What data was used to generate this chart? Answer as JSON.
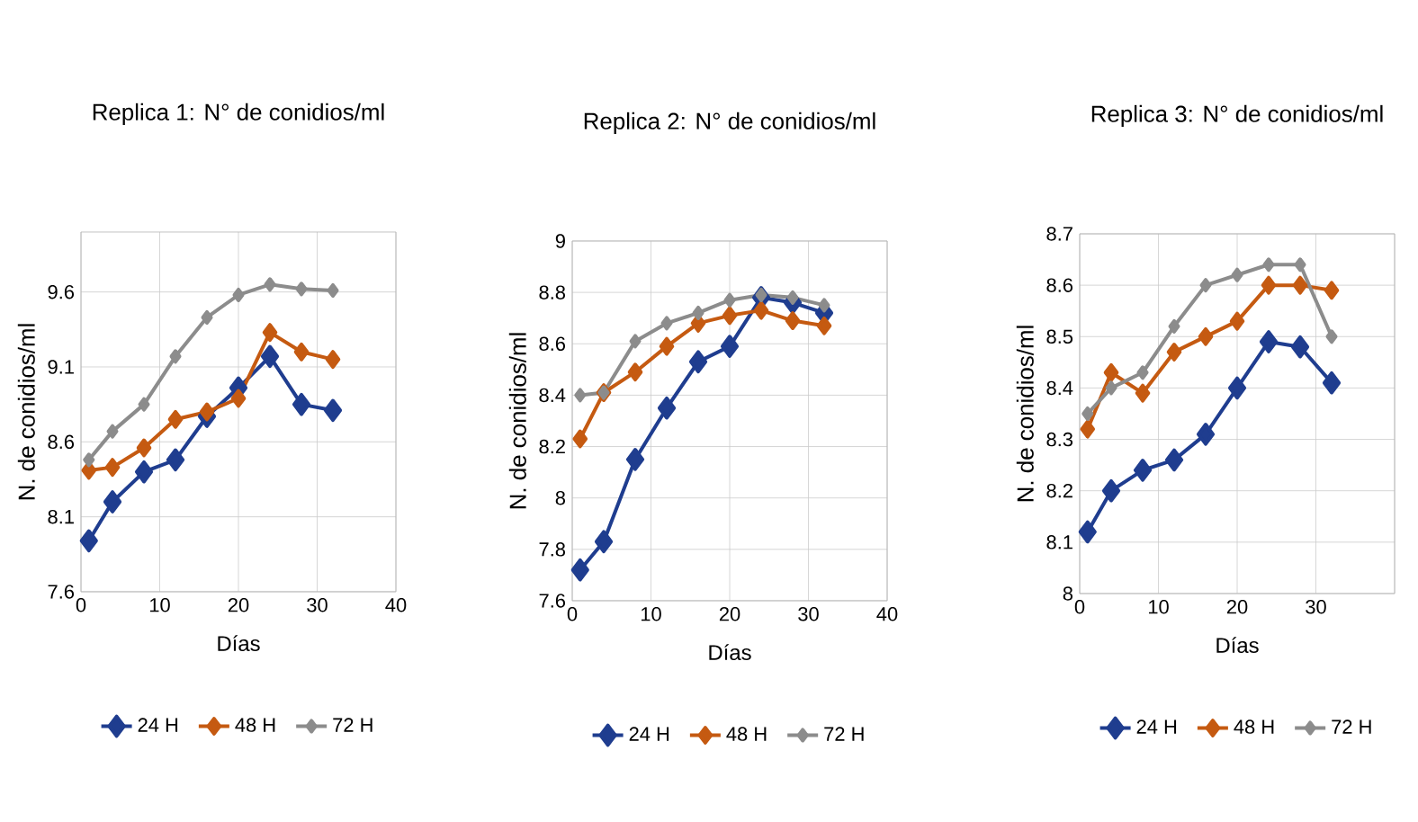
{
  "chart_data": [
    {
      "type": "line",
      "title": "Replica 1: N° de conidios/ml",
      "xlabel": "Días",
      "ylabel": "N. de conidios/ml",
      "x": [
        1,
        4,
        8,
        12,
        16,
        20,
        24,
        28,
        32
      ],
      "xlim": [
        0,
        40
      ],
      "xticks": [
        0,
        10,
        20,
        30,
        40
      ],
      "ylim": [
        7.6,
        10.0
      ],
      "yticks": [
        7.6,
        8.1,
        8.6,
        9.1,
        9.6
      ],
      "grid": true,
      "legend": "bottom",
      "marker": "diamond",
      "series": [
        {
          "name": "24 H",
          "color": "#1f3d8f",
          "values": [
            7.94,
            8.2,
            8.4,
            8.48,
            8.77,
            8.96,
            9.17,
            8.85,
            8.81
          ]
        },
        {
          "name": "48 H",
          "color": "#c55a11",
          "values": [
            8.41,
            8.43,
            8.56,
            8.75,
            8.8,
            8.89,
            9.33,
            9.2,
            9.15
          ]
        },
        {
          "name": "72 H",
          "color": "#8c8c8c",
          "values": [
            8.48,
            8.67,
            8.85,
            9.17,
            9.43,
            9.58,
            9.65,
            9.62,
            9.61
          ]
        }
      ]
    },
    {
      "type": "line",
      "title": "Replica 2: N° de conidios/ml",
      "xlabel": "Días",
      "ylabel": "N. de conidios/ml",
      "x": [
        1,
        4,
        8,
        12,
        16,
        20,
        24,
        28,
        32
      ],
      "xlim": [
        0,
        40
      ],
      "xticks": [
        0,
        10,
        20,
        30,
        40
      ],
      "ylim": [
        7.6,
        9.0
      ],
      "yticks": [
        7.6,
        7.8,
        8,
        8.2,
        8.4,
        8.6,
        8.8,
        9
      ],
      "grid": true,
      "legend": "bottom",
      "marker": "diamond",
      "series": [
        {
          "name": "24 H",
          "color": "#1f3d8f",
          "values": [
            7.72,
            7.83,
            8.15,
            8.35,
            8.53,
            8.59,
            8.78,
            8.76,
            8.72
          ]
        },
        {
          "name": "48 H",
          "color": "#c55a11",
          "values": [
            8.23,
            8.41,
            8.49,
            8.59,
            8.68,
            8.71,
            8.73,
            8.69,
            8.67
          ]
        },
        {
          "name": "72 H",
          "color": "#8c8c8c",
          "values": [
            8.4,
            8.41,
            8.61,
            8.68,
            8.72,
            8.77,
            8.79,
            8.78,
            8.75
          ]
        }
      ]
    },
    {
      "type": "line",
      "title": "Replica 3: N° de conidios/ml",
      "xlabel": "Días",
      "ylabel": "N. de conidios/ml",
      "x": [
        1,
        4,
        8,
        12,
        16,
        20,
        24,
        28,
        32
      ],
      "xlim": [
        0,
        40
      ],
      "xticks": [
        0,
        10,
        20,
        30,
        {
          "value": 40,
          "label": null
        }
      ],
      "ylim": [
        8.0,
        8.7
      ],
      "yticks": [
        8,
        8.1,
        8.2,
        8.3,
        8.4,
        8.5,
        8.6,
        8.7
      ],
      "grid": true,
      "legend": "bottom",
      "marker": "diamond",
      "series": [
        {
          "name": "24 H",
          "color": "#1f3d8f",
          "values": [
            8.12,
            8.2,
            8.24,
            8.26,
            8.31,
            8.4,
            8.49,
            8.48,
            8.41
          ]
        },
        {
          "name": "48 H",
          "color": "#c55a11",
          "values": [
            8.32,
            8.43,
            8.39,
            8.47,
            8.5,
            8.53,
            8.6,
            8.6,
            8.59
          ]
        },
        {
          "name": "72 H",
          "color": "#8c8c8c",
          "values": [
            8.35,
            8.4,
            8.43,
            8.52,
            8.6,
            8.62,
            8.64,
            8.64,
            8.5
          ]
        }
      ]
    }
  ]
}
